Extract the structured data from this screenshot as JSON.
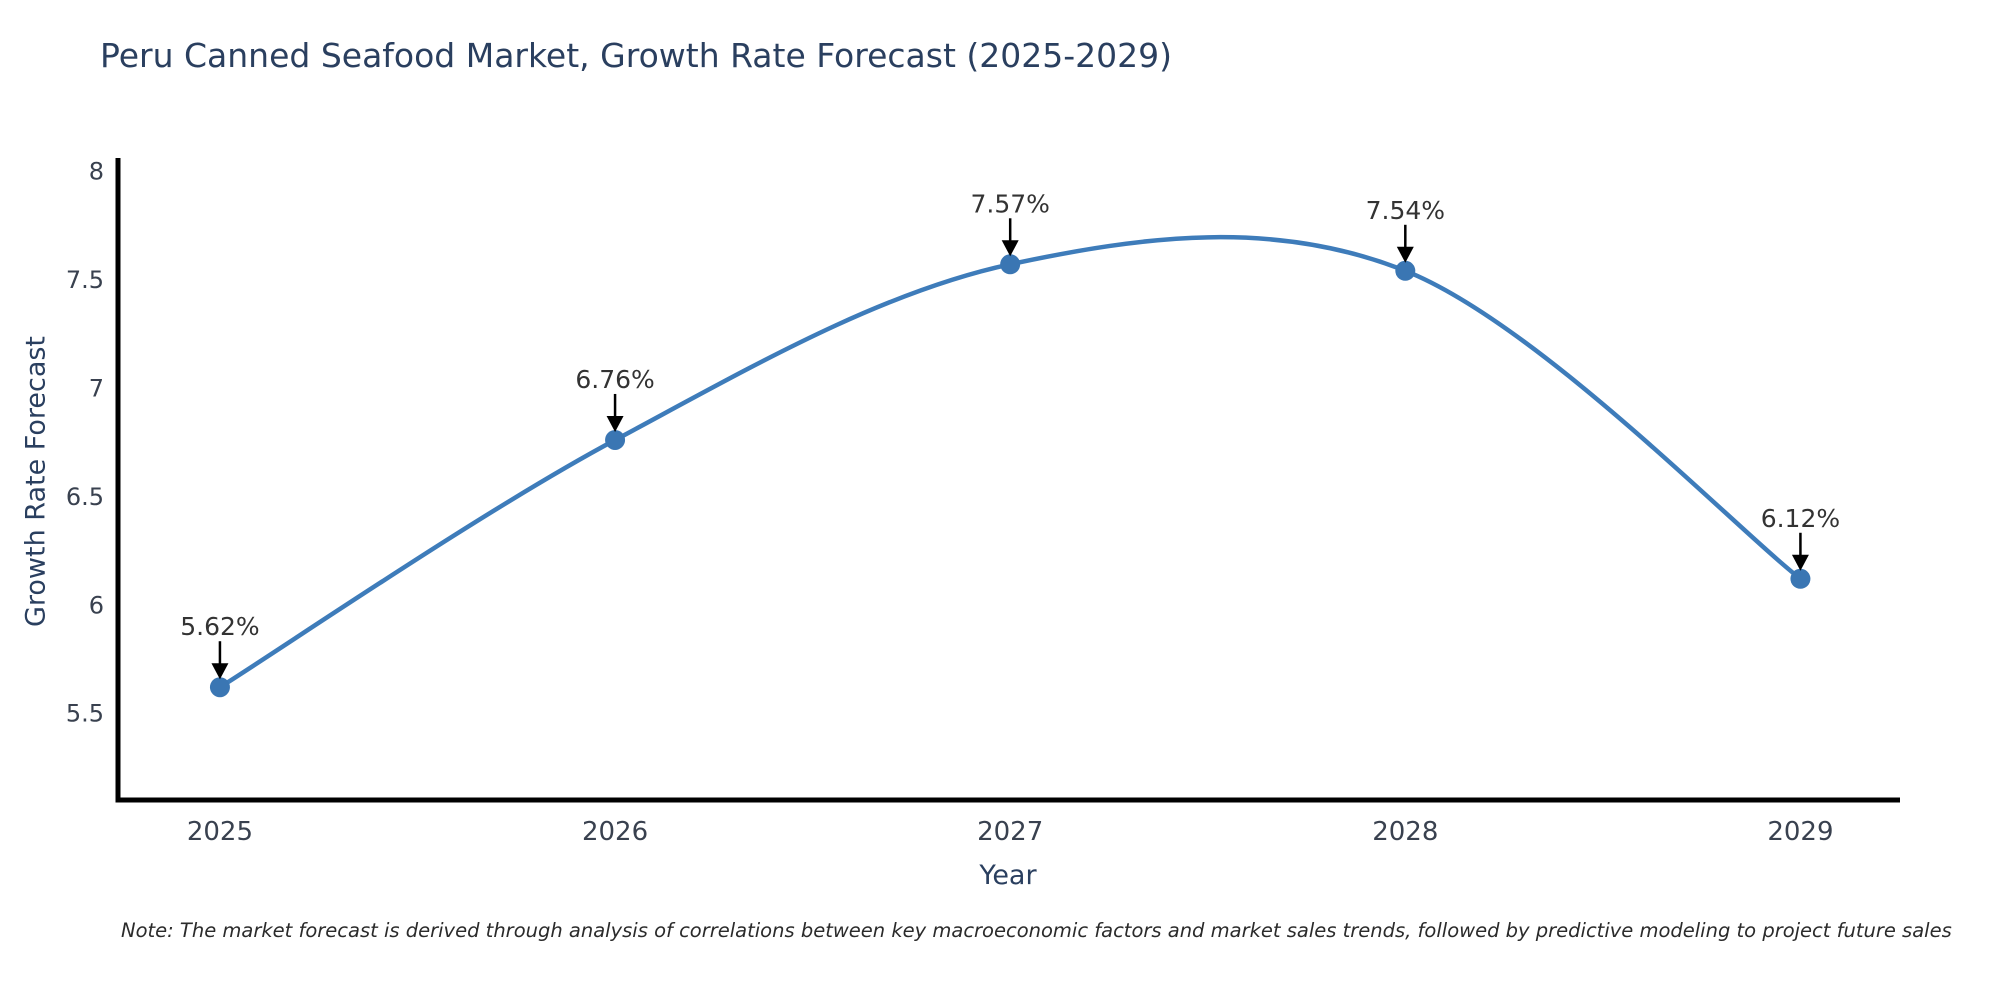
{
  "title": "Peru Canned Seafood Market, Growth Rate Forecast (2025-2029)",
  "note": "Note: The market forecast is derived through analysis of correlations between key macroeconomic factors and market sales trends, followed by predictive modeling to project future sales",
  "chart_data": {
    "type": "line",
    "line_shape": "spline",
    "x": [
      2025,
      2026,
      2027,
      2028,
      2029
    ],
    "values": [
      5.62,
      6.76,
      7.57,
      7.54,
      6.12
    ],
    "point_labels": [
      "5.62%",
      "6.76%",
      "7.57%",
      "7.54%",
      "6.12%"
    ],
    "xticklabels": [
      "2025",
      "2026",
      "2027",
      "2028",
      "2029"
    ],
    "yticks": [
      5.5,
      6,
      6.5,
      7,
      7.5,
      8
    ],
    "xlim": [
      2024.742,
      2029.252
    ],
    "ylim": [
      5.1,
      8.06
    ],
    "title": "Peru Canned Seafood Market, Growth Rate Forecast (2025-2029)",
    "xlabel": "Year",
    "ylabel": "Growth Rate Forecast",
    "grid": false,
    "legend": "none",
    "colors": {
      "line": "#3e7cba",
      "marker": "#3a76b3",
      "axis": "#000000",
      "tick_text": "#39414f",
      "title_text": "#2a3f5f",
      "annotation_text": "#333333",
      "arrow": "#000000",
      "background": "#ffffff"
    }
  }
}
